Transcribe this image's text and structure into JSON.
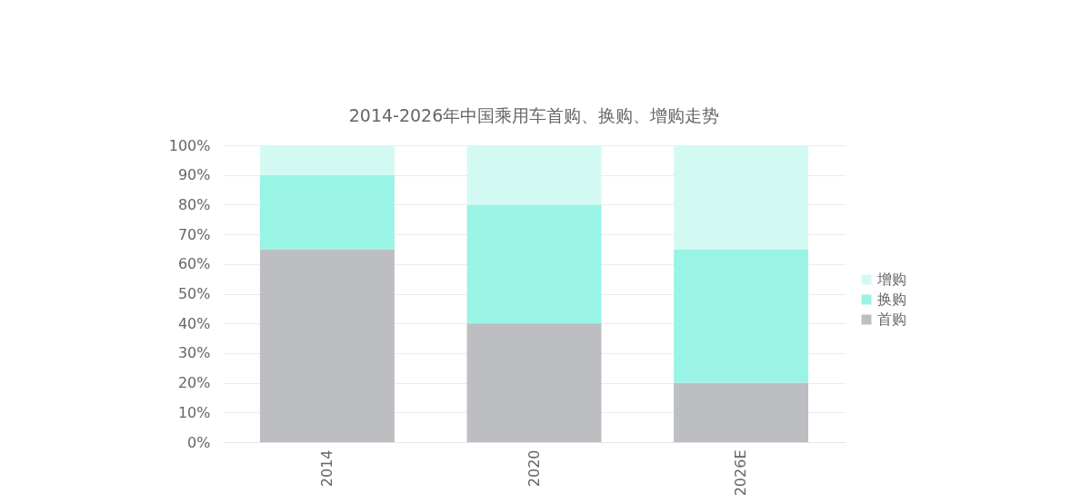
{
  "chart_data": {
    "type": "bar",
    "title": "2014-2026年中国乘用车首购、换购、增购走势",
    "categories": [
      "2014",
      "2020",
      "2026E"
    ],
    "stacked": true,
    "series": [
      {
        "name": "首购",
        "color": "#bcbec2",
        "values": [
          65,
          40,
          20
        ]
      },
      {
        "name": "换购",
        "color": "#99f4e6",
        "values": [
          25,
          40,
          45
        ]
      },
      {
        "name": "增购",
        "color": "#d2faf3",
        "values": [
          10,
          20,
          35
        ]
      }
    ],
    "ylim": [
      0,
      100
    ],
    "yticks": [
      {
        "value": 0,
        "label": "0%"
      },
      {
        "value": 10,
        "label": "10%"
      },
      {
        "value": 20,
        "label": "20%"
      },
      {
        "value": 30,
        "label": "30%"
      },
      {
        "value": 40,
        "label": "40%"
      },
      {
        "value": 50,
        "label": "50%"
      },
      {
        "value": 60,
        "label": "60%"
      },
      {
        "value": 70,
        "label": "70%"
      },
      {
        "value": 80,
        "label": "80%"
      },
      {
        "value": 90,
        "label": "90%"
      },
      {
        "value": 100,
        "label": "100%"
      }
    ],
    "grid": "y",
    "legend": "right"
  }
}
